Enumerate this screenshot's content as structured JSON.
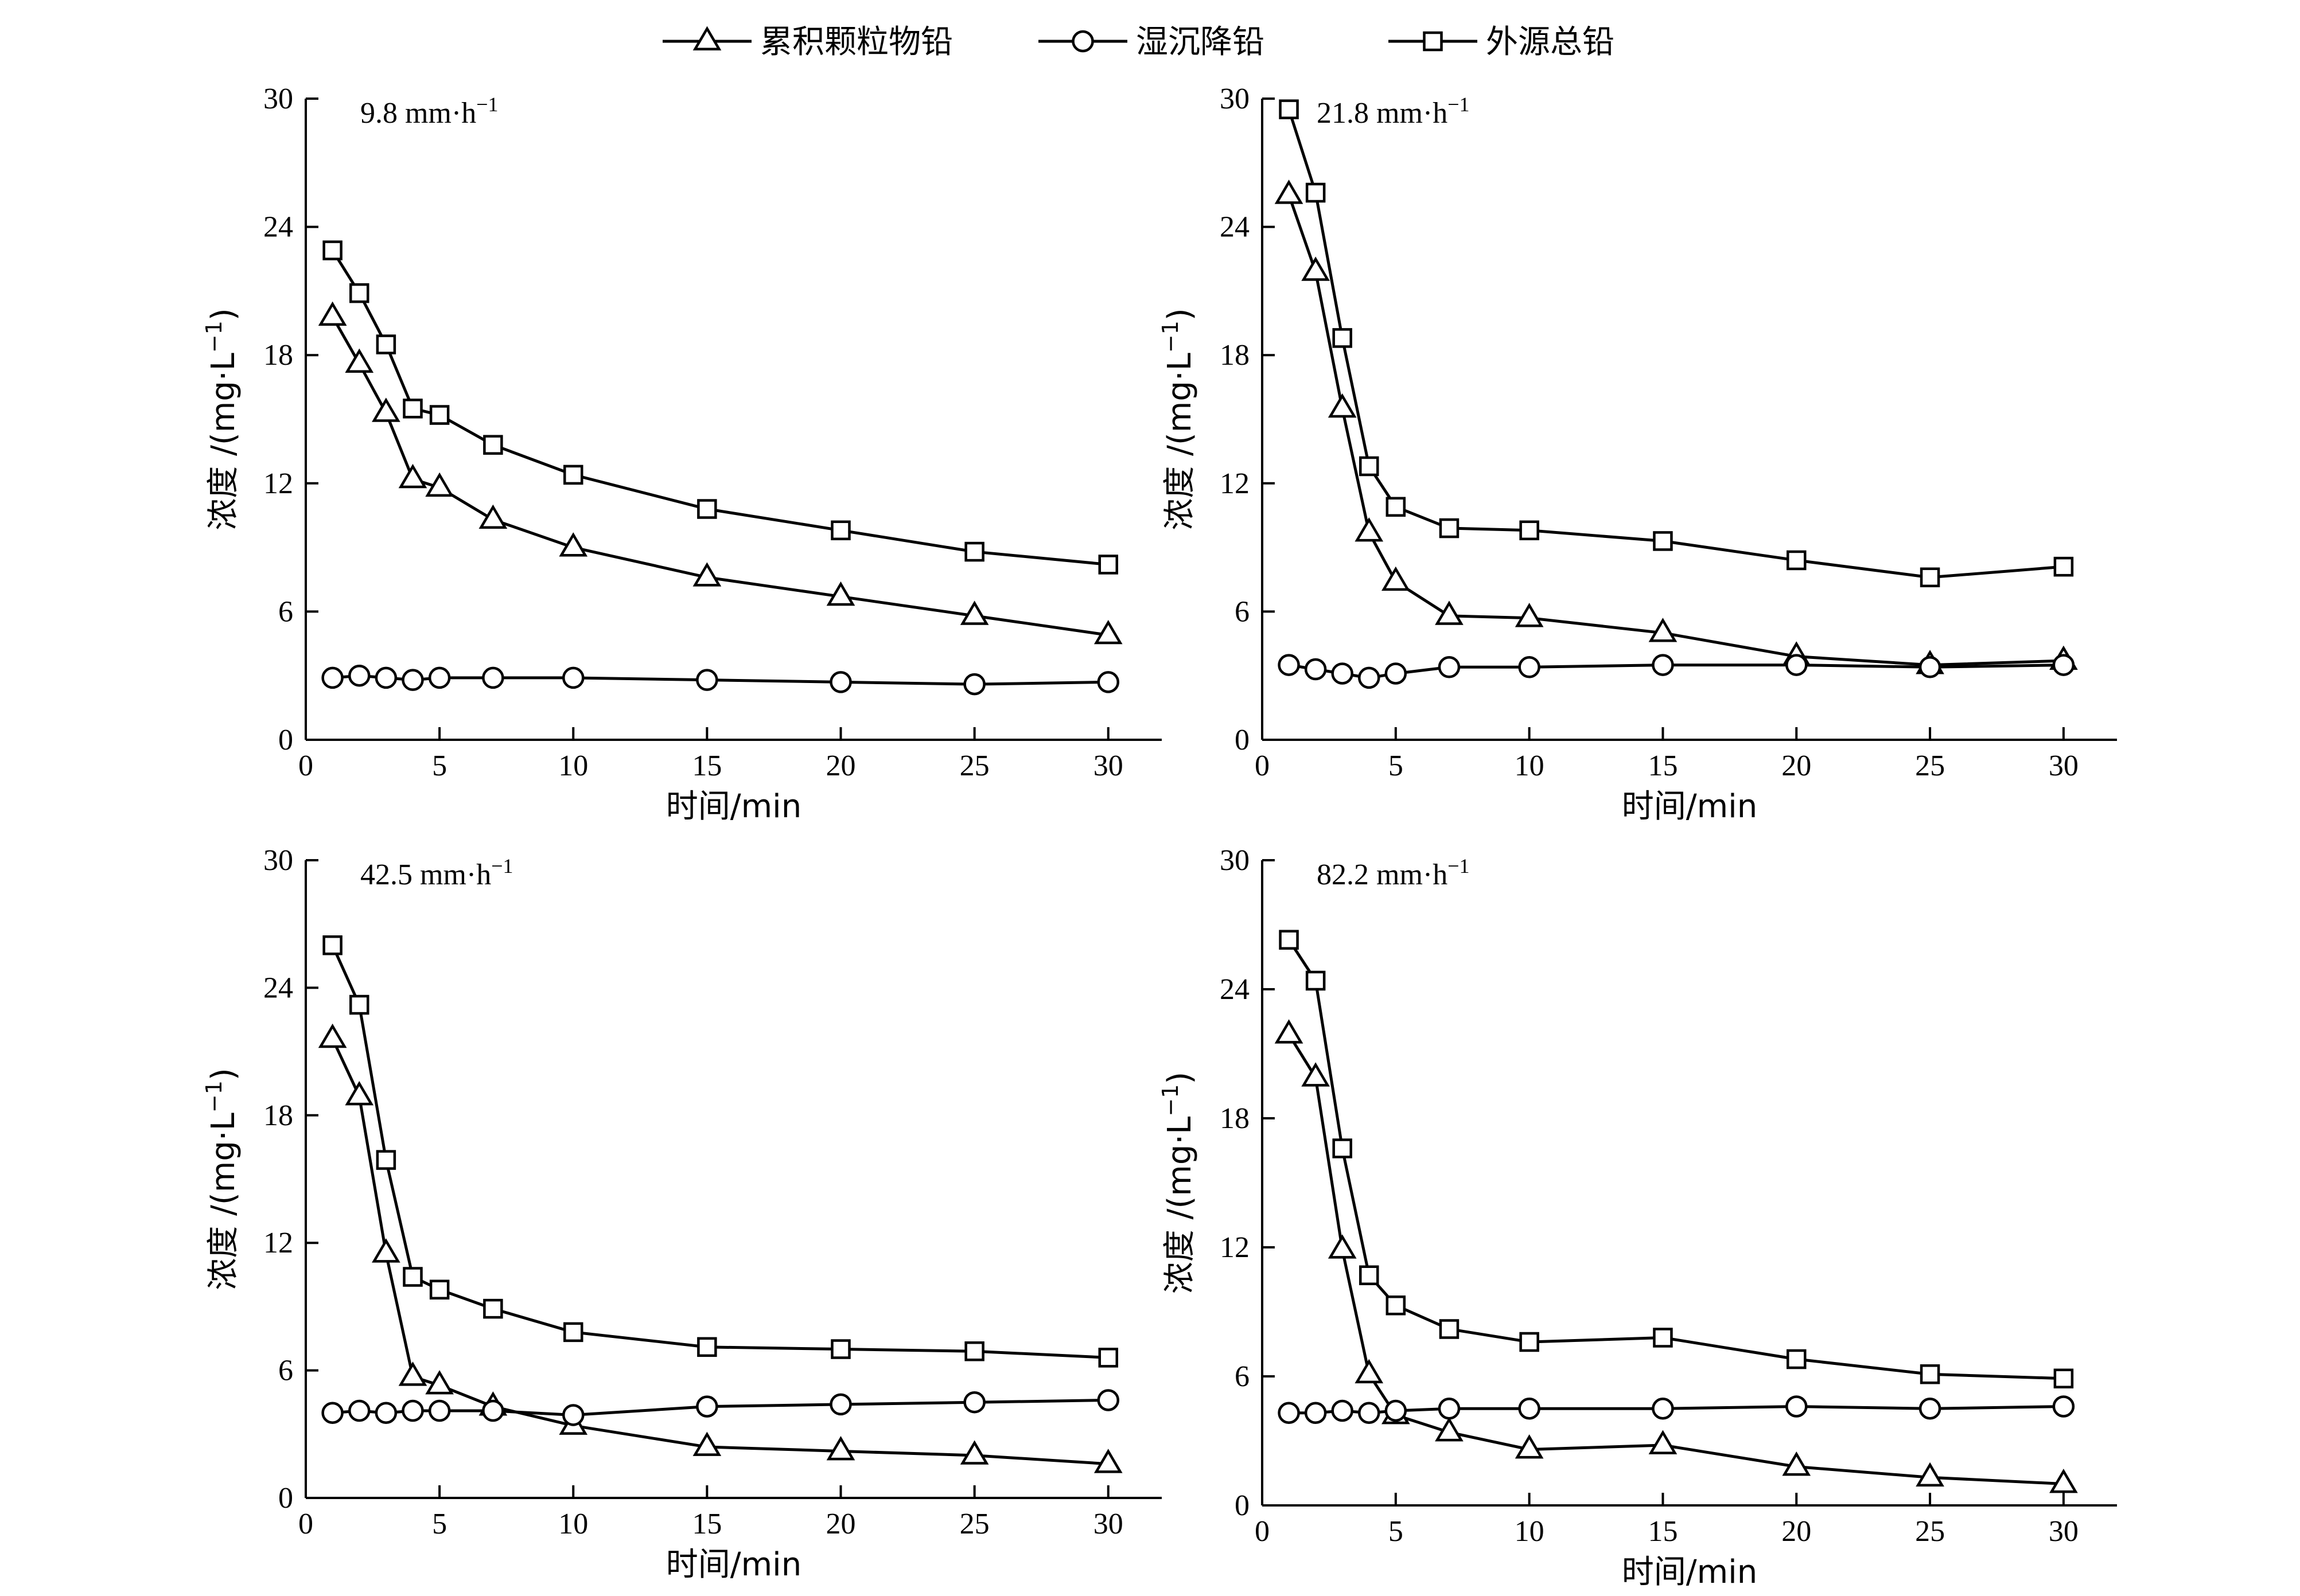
{
  "legend": [
    {
      "name": "累积颗粒物铅",
      "marker": "triangle"
    },
    {
      "name": "湿沉降铅",
      "marker": "circle"
    },
    {
      "name": "外源总铅",
      "marker": "square"
    }
  ],
  "chart_data": [
    {
      "type": "line",
      "annotation": "9.8 mm·h",
      "annotation_sup": "−1",
      "xlabel": "时间/min",
      "ylabel": "浓度 /(mg·L",
      "ylabel_sup": "−1",
      "ylabel_close": ")",
      "xlim": [
        0,
        32
      ],
      "ylim": [
        0,
        30
      ],
      "xticks": [
        0,
        5,
        10,
        15,
        20,
        25,
        30
      ],
      "yticks": [
        0,
        6,
        12,
        18,
        24,
        30
      ],
      "x": [
        1,
        2,
        3,
        4,
        5,
        7,
        10,
        15,
        20,
        25,
        30
      ],
      "series": [
        {
          "name": "累积颗粒物铅",
          "marker": "triangle",
          "values": [
            19.8,
            17.6,
            15.3,
            12.2,
            11.8,
            10.3,
            9.0,
            7.6,
            6.7,
            5.8,
            4.9
          ]
        },
        {
          "name": "湿沉降铅",
          "marker": "circle",
          "values": [
            2.9,
            3.0,
            2.9,
            2.8,
            2.9,
            2.9,
            2.9,
            2.8,
            2.7,
            2.6,
            2.7
          ]
        },
        {
          "name": "外源总铅",
          "marker": "square",
          "values": [
            22.9,
            20.9,
            18.5,
            15.5,
            15.2,
            13.8,
            12.4,
            10.8,
            9.8,
            8.8,
            8.2
          ]
        }
      ]
    },
    {
      "type": "line",
      "annotation": "21.8 mm·h",
      "annotation_sup": "−1",
      "xlabel": "时间/min",
      "ylabel": "浓度 /(mg·L",
      "ylabel_sup": "−1",
      "ylabel_close": ")",
      "xlim": [
        0,
        32
      ],
      "ylim": [
        0,
        30
      ],
      "xticks": [
        0,
        5,
        10,
        15,
        20,
        25,
        30
      ],
      "yticks": [
        0,
        6,
        12,
        18,
        24,
        30
      ],
      "x": [
        1,
        2,
        3,
        4,
        5,
        7,
        10,
        15,
        20,
        25,
        30
      ],
      "series": [
        {
          "name": "累积颗粒物铅",
          "marker": "triangle",
          "values": [
            25.5,
            21.9,
            15.5,
            9.7,
            7.4,
            5.8,
            5.7,
            5.0,
            3.9,
            3.5,
            3.7
          ]
        },
        {
          "name": "湿沉降铅",
          "marker": "circle",
          "values": [
            3.5,
            3.3,
            3.1,
            2.9,
            3.1,
            3.4,
            3.4,
            3.5,
            3.5,
            3.4,
            3.5
          ]
        },
        {
          "name": "外源总铅",
          "marker": "square",
          "values": [
            29.5,
            25.6,
            18.8,
            12.8,
            10.9,
            9.9,
            9.8,
            9.3,
            8.4,
            7.6,
            8.1
          ]
        }
      ]
    },
    {
      "type": "line",
      "annotation": "42.5 mm·h",
      "annotation_sup": "−1",
      "xlabel": "时间/min",
      "ylabel": "浓度 /(mg·L",
      "ylabel_sup": "−1",
      "ylabel_close": ")",
      "xlim": [
        0,
        32
      ],
      "ylim": [
        0,
        30
      ],
      "xticks": [
        0,
        5,
        10,
        15,
        20,
        25,
        30
      ],
      "yticks": [
        0,
        6,
        12,
        18,
        24,
        30
      ],
      "x": [
        1,
        2,
        3,
        4,
        5,
        7,
        10,
        15,
        20,
        25,
        30
      ],
      "series": [
        {
          "name": "累积颗粒物铅",
          "marker": "triangle",
          "values": [
            21.6,
            18.9,
            11.5,
            5.7,
            5.3,
            4.3,
            3.4,
            2.4,
            2.2,
            2.0,
            1.6
          ]
        },
        {
          "name": "湿沉降铅",
          "marker": "circle",
          "values": [
            4.0,
            4.1,
            4.0,
            4.1,
            4.1,
            4.1,
            3.9,
            4.3,
            4.4,
            4.5,
            4.6
          ]
        },
        {
          "name": "外源总铅",
          "marker": "square",
          "values": [
            26.0,
            23.2,
            15.9,
            10.4,
            9.8,
            8.9,
            7.8,
            7.1,
            7.0,
            6.9,
            6.6
          ]
        }
      ]
    },
    {
      "type": "line",
      "annotation": "82.2 mm·h",
      "annotation_sup": "−1",
      "xlabel": "时间/min",
      "ylabel": "浓度 /(mg·L",
      "ylabel_sup": "−1",
      "ylabel_close": ")",
      "xlim": [
        0,
        32
      ],
      "ylim": [
        0,
        30
      ],
      "xticks": [
        0,
        5,
        10,
        15,
        20,
        25,
        30
      ],
      "yticks": [
        0,
        6,
        12,
        18,
        24,
        30
      ],
      "x": [
        1,
        2,
        3,
        4,
        5,
        7,
        10,
        15,
        20,
        25,
        30
      ],
      "series": [
        {
          "name": "累积颗粒物铅",
          "marker": "triangle",
          "values": [
            21.9,
            19.9,
            11.9,
            6.1,
            4.2,
            3.4,
            2.6,
            2.8,
            1.8,
            1.3,
            1.0
          ]
        },
        {
          "name": "湿沉降铅",
          "marker": "circle",
          "values": [
            4.3,
            4.3,
            4.4,
            4.3,
            4.4,
            4.5,
            4.5,
            4.5,
            4.6,
            4.5,
            4.6
          ]
        },
        {
          "name": "外源总铅",
          "marker": "square",
          "values": [
            26.3,
            24.4,
            16.6,
            10.7,
            9.3,
            8.2,
            7.6,
            7.8,
            6.8,
            6.1,
            5.9
          ]
        }
      ]
    }
  ]
}
